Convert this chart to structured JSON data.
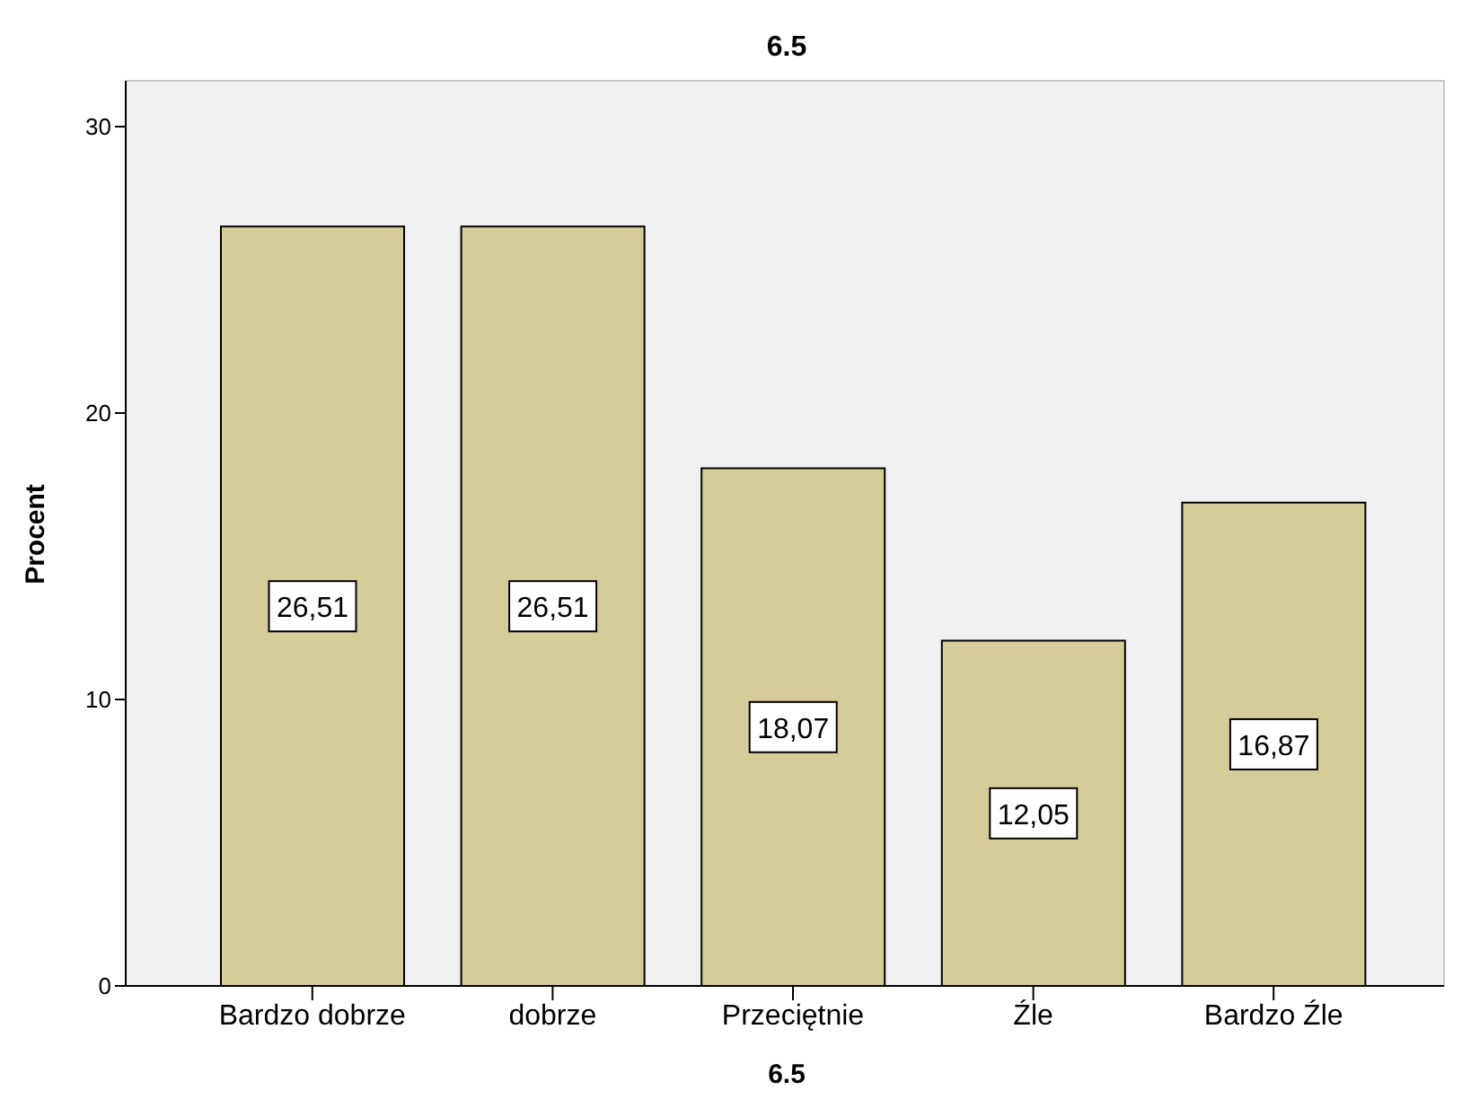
{
  "chart_data": {
    "type": "bar",
    "title": "6.5",
    "xlabel": "6.5",
    "ylabel": "Procent",
    "categories": [
      "Bardzo dobrze",
      "dobrze",
      "Przeciętnie",
      "Źle",
      "Bardzo Źle"
    ],
    "values": [
      26.51,
      26.51,
      18.07,
      12.05,
      16.87
    ],
    "value_labels": [
      "26,51",
      "26,51",
      "18,07",
      "12,05",
      "16,87"
    ],
    "color": "#d4cc99",
    "ylim": [
      0,
      31.6
    ],
    "yticks": [
      0,
      10,
      20,
      30
    ]
  }
}
